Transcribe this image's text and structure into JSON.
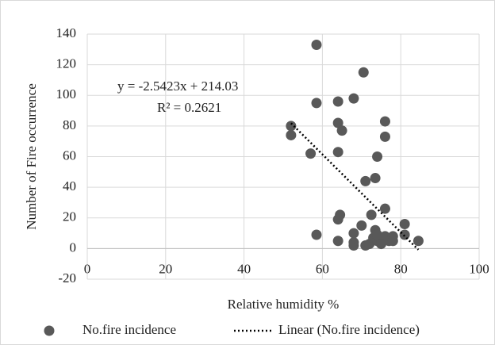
{
  "chart_data": {
    "type": "scatter",
    "x_label": "Relative humidity %",
    "y_label": "Number of Fire occurrence",
    "xlim": [
      0,
      100
    ],
    "xticks": [
      0,
      20,
      40,
      60,
      80,
      100
    ],
    "ylim": [
      -20,
      140
    ],
    "yticks": [
      -20,
      0,
      20,
      40,
      60,
      80,
      100,
      120,
      140
    ],
    "grid": true,
    "legend": "bottom",
    "series": [
      {
        "name": "No.fire incidence",
        "color": "#595959",
        "x": [
          58.5,
          70.5,
          58.5,
          64,
          68,
          64,
          65,
          76,
          52,
          52,
          57,
          64,
          76,
          74,
          71,
          73.5,
          76,
          64.5,
          64,
          72.5,
          70,
          58.5,
          68,
          68,
          68,
          64,
          71,
          72,
          73,
          73.5,
          74,
          75,
          76,
          77,
          78,
          78,
          81,
          81,
          84.5,
          74,
          75
        ],
        "values": [
          133,
          115,
          95,
          96,
          98,
          82,
          77,
          83,
          80,
          74,
          62,
          63,
          73,
          60,
          44,
          46,
          26,
          22,
          19,
          22,
          15,
          9,
          10,
          4,
          2,
          5,
          2,
          3,
          7,
          12,
          5,
          4,
          8,
          5,
          8,
          5,
          16,
          9,
          5,
          9,
          3
        ]
      }
    ],
    "trendline": {
      "name": "Linear (No.fire incidence)",
      "color": "#000000",
      "slope": -2.5423,
      "intercept": 214.03,
      "x_start": 52,
      "x_end": 84.5
    },
    "annotations": [
      "y = -2.5423x + 214.03",
      "R² = 0.2621"
    ]
  }
}
